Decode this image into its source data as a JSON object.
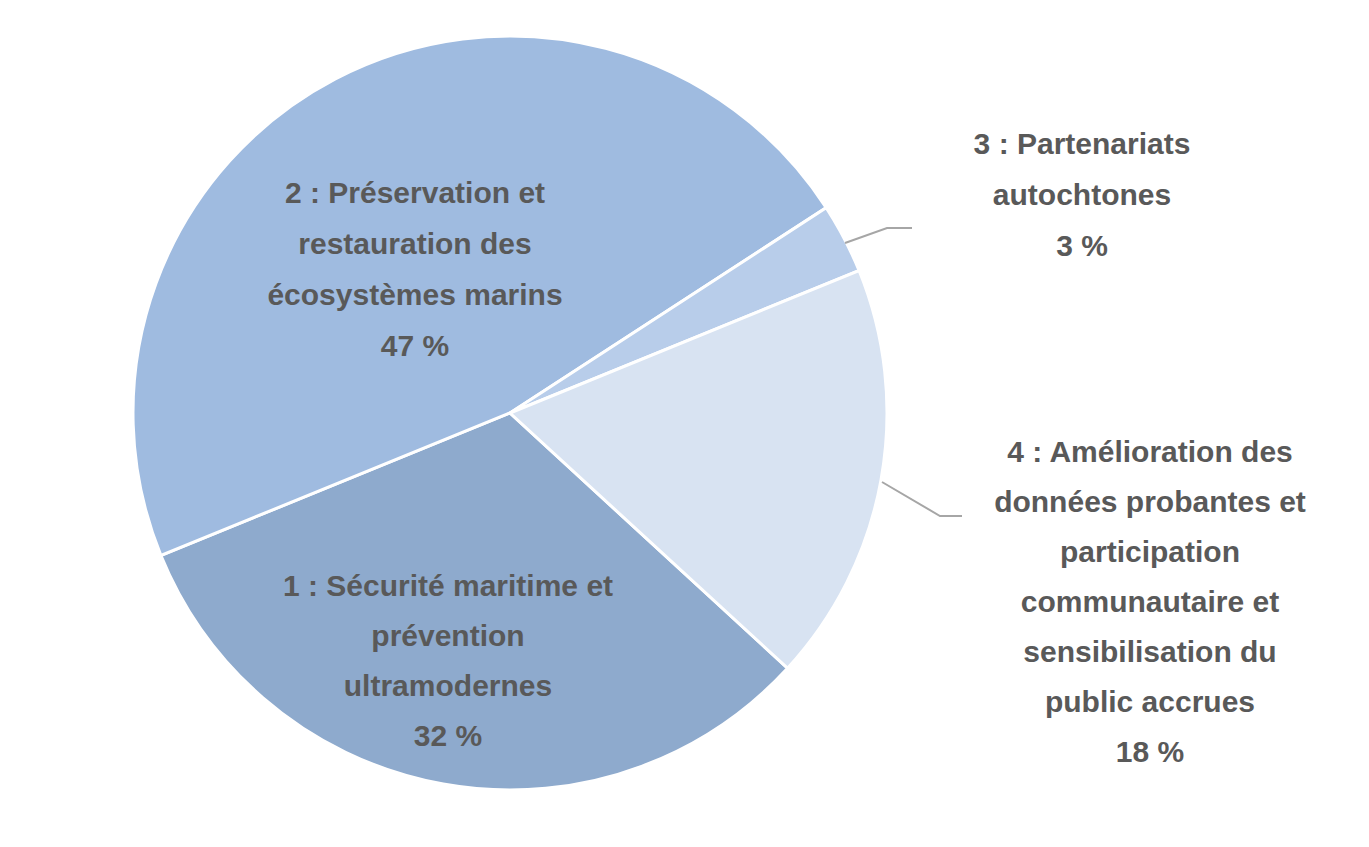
{
  "chart_data": {
    "type": "pie",
    "categories": [
      "1 : Sécurité maritime et prévention ultramodernes",
      "2 : Préservation et restauration des écosystèmes marins",
      "3 : Partenariats autochtones",
      "4 : Amélioration des données probantes et participation communautaire et sensibilisation du public accrues"
    ],
    "values": [
      32,
      47,
      3,
      18
    ],
    "value_labels": [
      "32 %",
      "47 %",
      "3 %",
      "18 %"
    ],
    "colors": [
      "#8eaacd",
      "#9fbbe0",
      "#b8cdea",
      "#d8e3f2"
    ],
    "data_labels": true
  }
}
